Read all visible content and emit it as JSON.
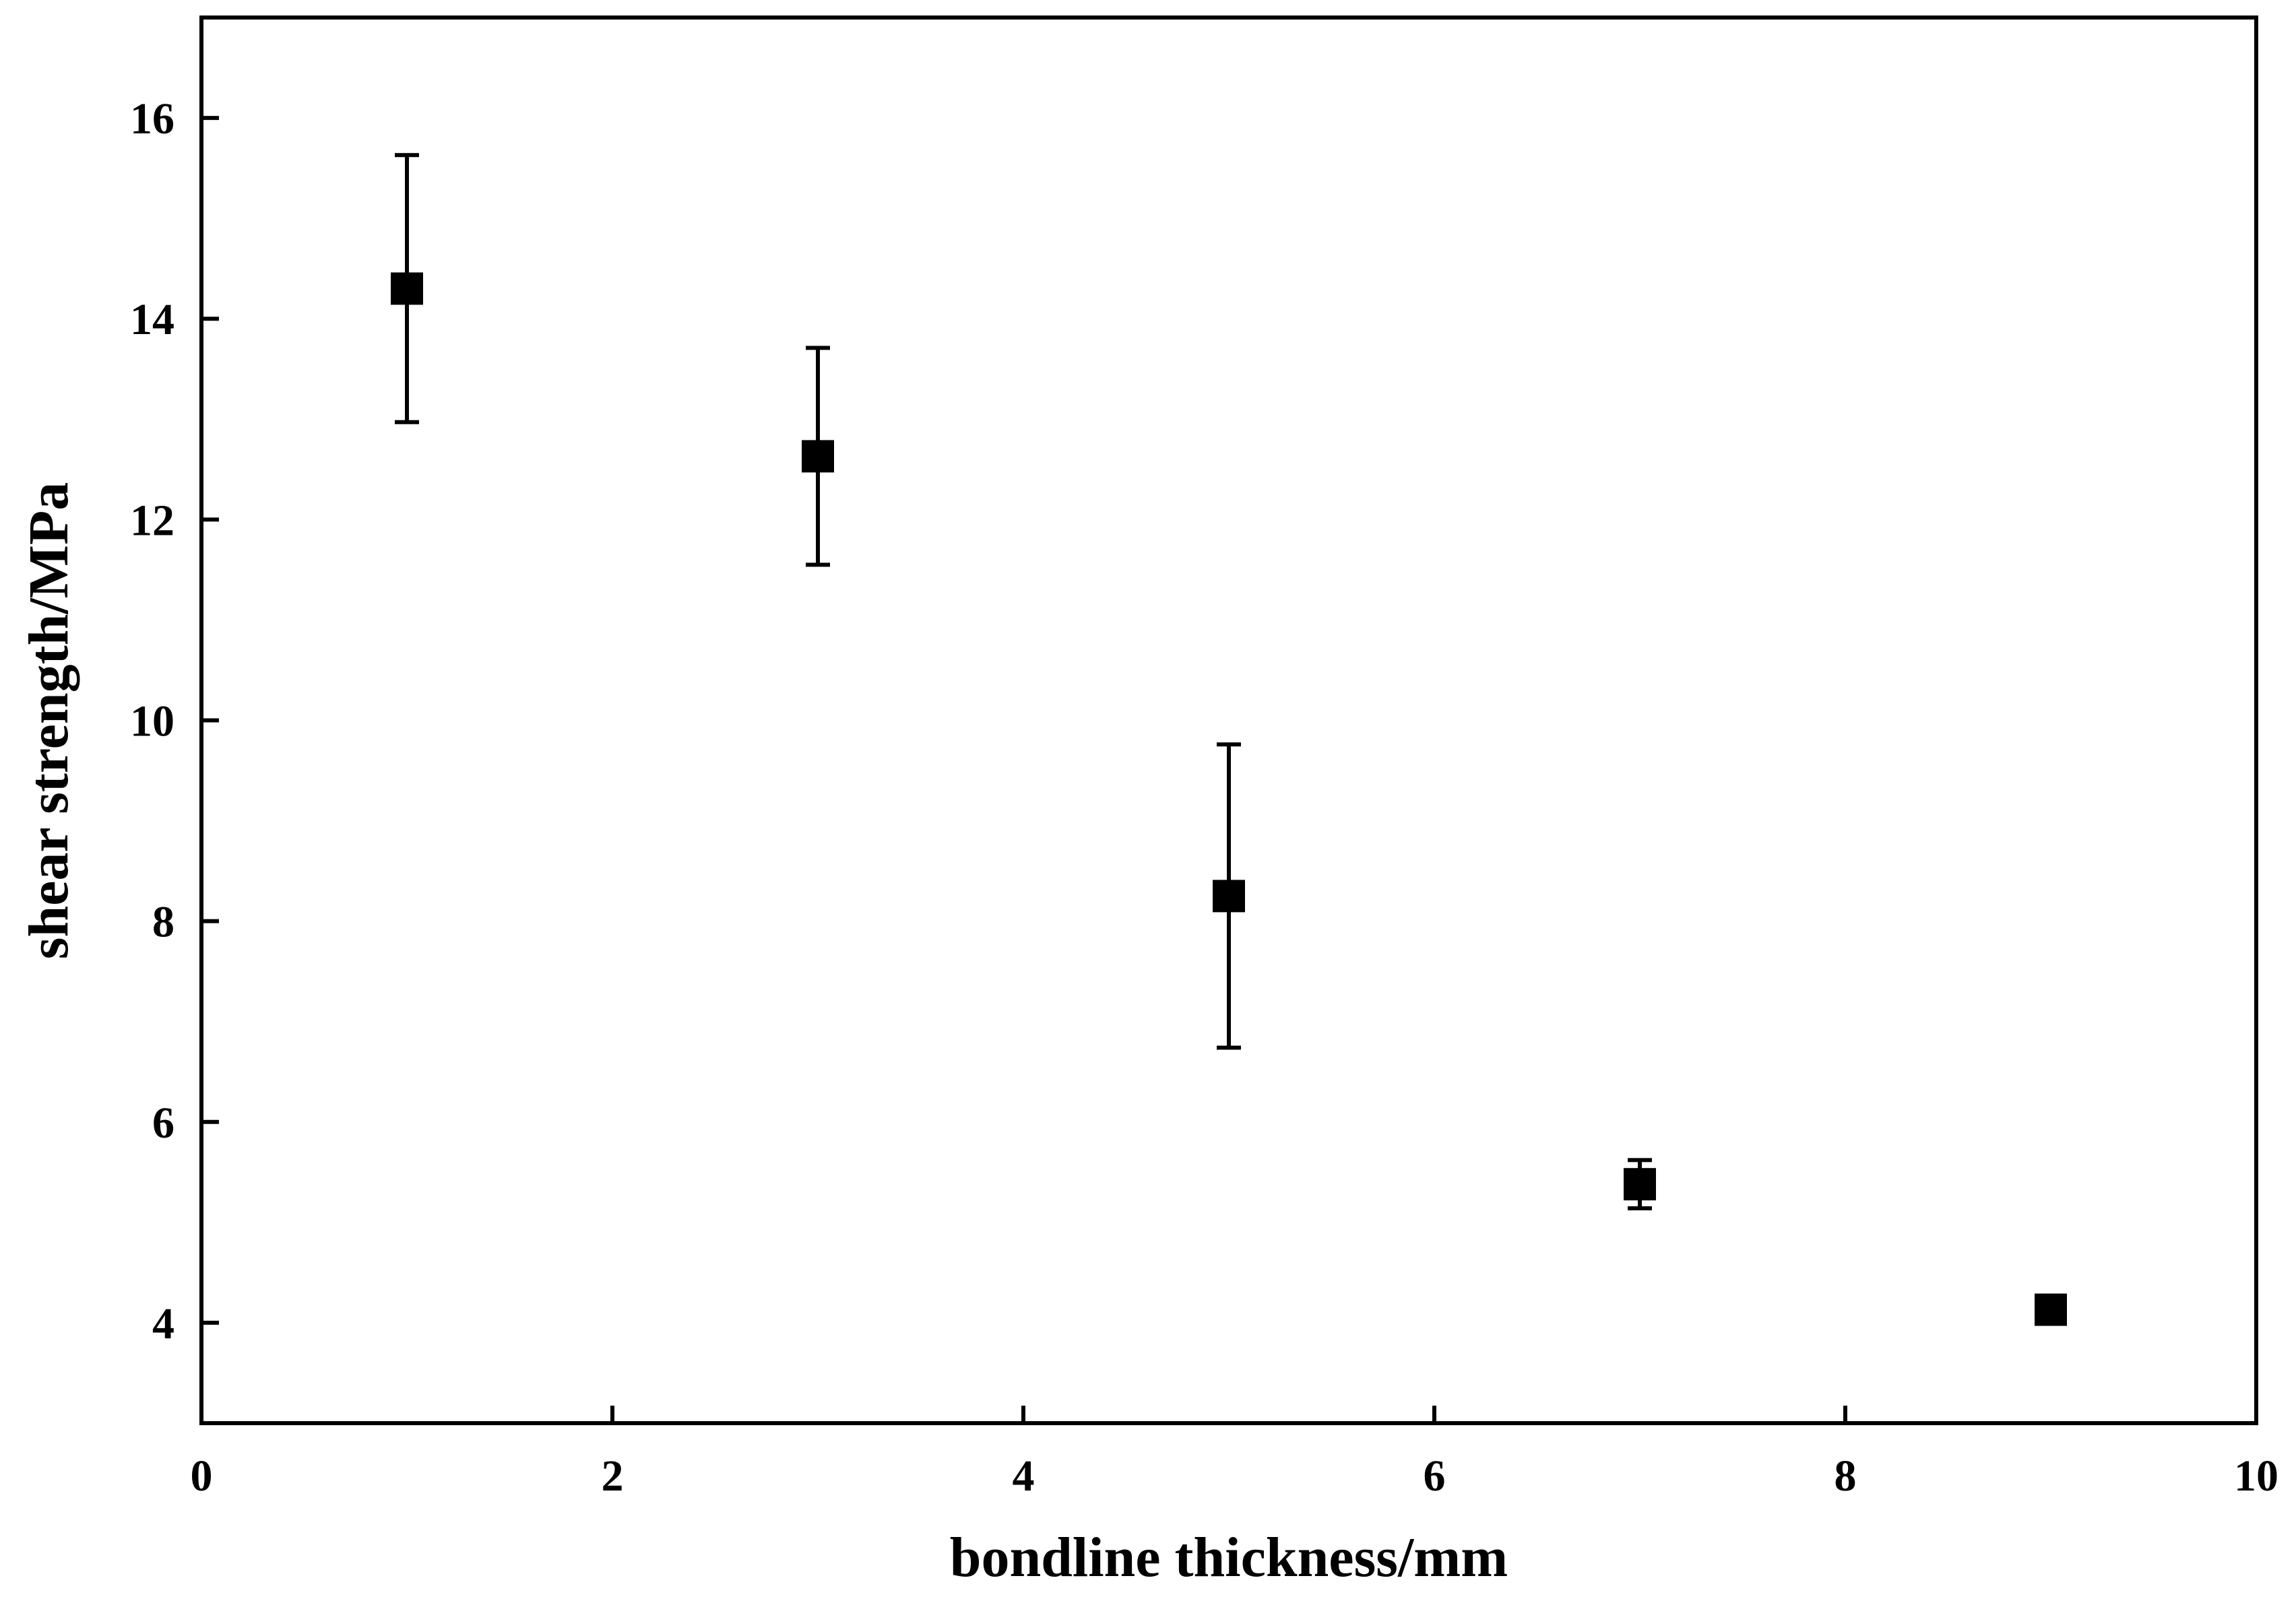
{
  "chart_data": {
    "type": "scatter",
    "x_label": "bondline thickness/mm",
    "y_label": "shear strength/MPa",
    "x": [
      1,
      3,
      5,
      7,
      9
    ],
    "values": [
      14.3,
      12.63,
      8.25,
      5.38,
      4.13
    ],
    "errors": [
      1.33,
      1.08,
      1.51,
      0.24,
      0.05
    ],
    "color": "#000000",
    "xlim": [
      0,
      10
    ],
    "ylim": [
      3,
      17
    ],
    "xticks": [
      0,
      2,
      4,
      6,
      8,
      10
    ],
    "yticks": [
      4,
      6,
      8,
      10,
      12,
      14,
      16
    ]
  }
}
